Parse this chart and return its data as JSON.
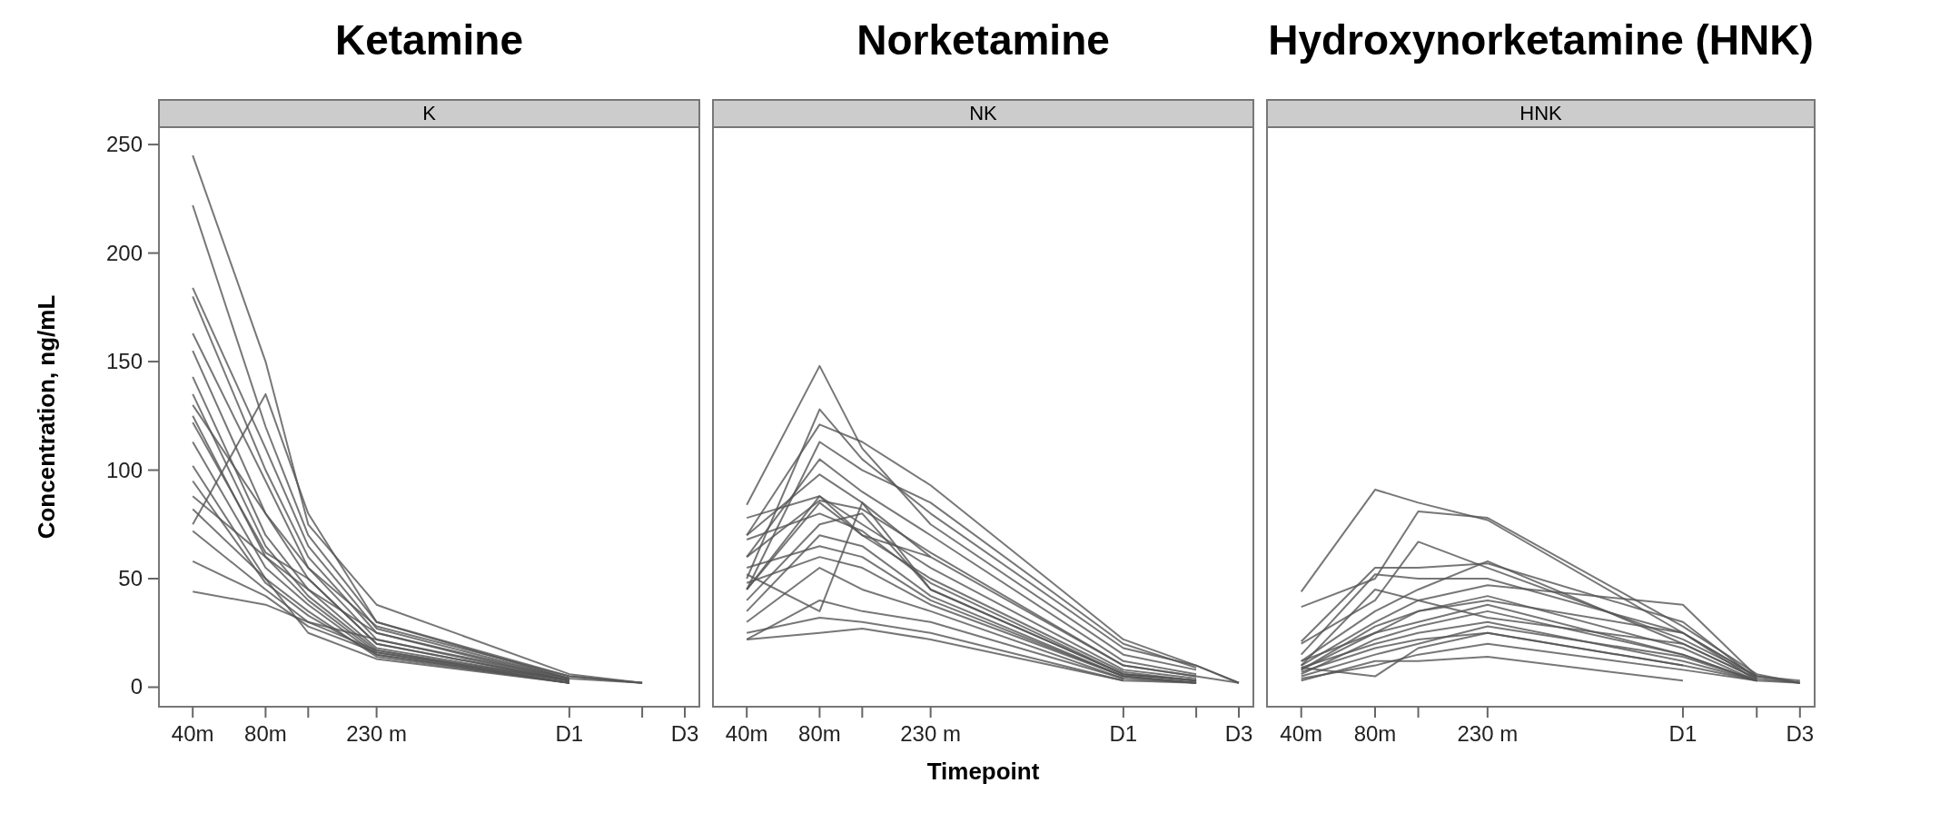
{
  "chart_data": [
    {
      "type": "line",
      "title": "Ketamine",
      "subtitle": "K",
      "ylabel": "Concentration, ng/mL",
      "log": "x",
      "x": [
        40,
        80,
        120,
        230,
        1440,
        2880
      ],
      "xlim": [
        29,
        4960
      ],
      "xticks": [
        {
          "value": 40,
          "label": "40m"
        },
        {
          "value": 80,
          "label": "80m"
        },
        {
          "value": 120,
          "label": null
        },
        {
          "value": 230,
          "label": "230 m"
        },
        {
          "value": 1440,
          "label": "D1"
        },
        {
          "value": 2880,
          "label": null
        },
        {
          "value": 4320,
          "label": "D3"
        }
      ],
      "ylim": [
        -9,
        258
      ],
      "yticks": [
        0,
        50,
        100,
        150,
        200,
        250
      ],
      "series": [
        {
          "color": "#555555",
          "values": [
            245,
            150,
            75,
            38,
            6,
            2
          ]
        },
        {
          "color": "#555555",
          "values": [
            222,
            120,
            70,
            30,
            4,
            null
          ]
        },
        {
          "color": "#555555",
          "values": [
            184,
            110,
            65,
            27,
            4,
            null
          ]
        },
        {
          "color": "#555555",
          "values": [
            180,
            100,
            60,
            25,
            3,
            null
          ]
        },
        {
          "color": "#555555",
          "values": [
            163,
            95,
            55,
            22,
            3,
            null
          ]
        },
        {
          "color": "#555555",
          "values": [
            155,
            80,
            50,
            20,
            3,
            null
          ]
        },
        {
          "color": "#555555",
          "values": [
            143,
            70,
            45,
            18,
            3,
            null
          ]
        },
        {
          "color": "#555555",
          "values": [
            135,
            65,
            42,
            17,
            2,
            null
          ]
        },
        {
          "color": "#555555",
          "values": [
            125,
            60,
            40,
            16,
            2,
            null
          ]
        },
        {
          "color": "#555555",
          "values": [
            122,
            62,
            50,
            20,
            3,
            null
          ]
        },
        {
          "color": "#555555",
          "values": [
            113,
            55,
            38,
            15,
            2,
            null
          ]
        },
        {
          "color": "#555555",
          "values": [
            102,
            50,
            35,
            14,
            2,
            null
          ]
        },
        {
          "color": "#555555",
          "values": [
            95,
            48,
            33,
            15,
            2,
            null
          ]
        },
        {
          "color": "#555555",
          "values": [
            75,
            135,
            80,
            30,
            5,
            2
          ]
        },
        {
          "color": "#555555",
          "values": [
            88,
            60,
            45,
            25,
            4,
            null
          ]
        },
        {
          "color": "#555555",
          "values": [
            72,
            45,
            30,
            17,
            3,
            null
          ]
        },
        {
          "color": "#555555",
          "values": [
            58,
            42,
            28,
            16,
            3,
            null
          ]
        },
        {
          "color": "#555555",
          "values": [
            44,
            38,
            30,
            22,
            4,
            2
          ]
        },
        {
          "color": "#555555",
          "values": [
            82,
            50,
            25,
            13,
            2,
            null
          ]
        },
        {
          "color": "#555555",
          "values": [
            130,
            80,
            55,
            28,
            5,
            2
          ]
        }
      ]
    },
    {
      "type": "line",
      "title": "Norketamine",
      "subtitle": "NK",
      "xlabel": "Timepoint",
      "log": "x",
      "tick_labels": "x",
      "x": [
        40,
        80,
        120,
        230,
        1440,
        2880,
        4320
      ],
      "xlim": [
        29,
        4960
      ],
      "xticks": [
        {
          "value": 40,
          "label": "40m"
        },
        {
          "value": 80,
          "label": "80m"
        },
        {
          "value": 120,
          "label": null
        },
        {
          "value": 230,
          "label": "230 m"
        },
        {
          "value": 1440,
          "label": "D1"
        },
        {
          "value": 2880,
          "label": null
        },
        {
          "value": 4320,
          "label": "D3"
        }
      ],
      "ylim": [
        -9,
        258
      ],
      "yticks": [
        0,
        50,
        100,
        150,
        200,
        250
      ],
      "series": [
        {
          "color": "#555555",
          "values": [
            84,
            148,
            110,
            75,
            15,
            8,
            null
          ]
        },
        {
          "color": "#555555",
          "values": [
            50,
            128,
            105,
            80,
            18,
            10,
            2
          ]
        },
        {
          "color": "#555555",
          "values": [
            70,
            121,
            113,
            93,
            22,
            10,
            2
          ]
        },
        {
          "color": "#555555",
          "values": [
            45,
            113,
            100,
            85,
            20,
            9,
            null
          ]
        },
        {
          "color": "#555555",
          "values": [
            60,
            105,
            90,
            70,
            12,
            6,
            null
          ]
        },
        {
          "color": "#555555",
          "values": [
            70,
            98,
            85,
            60,
            10,
            5,
            null
          ]
        },
        {
          "color": "#555555",
          "values": [
            78,
            88,
            75,
            55,
            8,
            4,
            null
          ]
        },
        {
          "color": "#555555",
          "values": [
            60,
            86,
            82,
            62,
            10,
            5,
            2
          ]
        },
        {
          "color": "#555555",
          "values": [
            45,
            85,
            70,
            50,
            7,
            3,
            null
          ]
        },
        {
          "color": "#555555",
          "values": [
            68,
            80,
            72,
            48,
            6,
            3,
            null
          ]
        },
        {
          "color": "#555555",
          "values": [
            40,
            75,
            80,
            45,
            6,
            3,
            null
          ]
        },
        {
          "color": "#555555",
          "values": [
            35,
            70,
            65,
            42,
            5,
            2,
            null
          ]
        },
        {
          "color": "#555555",
          "values": [
            55,
            65,
            60,
            40,
            5,
            2,
            null
          ]
        },
        {
          "color": "#555555",
          "values": [
            48,
            60,
            55,
            38,
            5,
            2,
            null
          ]
        },
        {
          "color": "#555555",
          "values": [
            30,
            55,
            45,
            35,
            4,
            2,
            null
          ]
        },
        {
          "color": "#555555",
          "values": [
            52,
            35,
            85,
            45,
            6,
            3,
            null
          ]
        },
        {
          "color": "#555555",
          "values": [
            22,
            40,
            35,
            30,
            4,
            null,
            null
          ]
        },
        {
          "color": "#555555",
          "values": [
            25,
            32,
            30,
            25,
            3,
            null,
            null
          ]
        },
        {
          "color": "#555555",
          "values": [
            22,
            25,
            27,
            22,
            3,
            2,
            null
          ]
        },
        {
          "color": "#555555",
          "values": [
            45,
            88,
            70,
            60,
            null,
            null,
            null
          ]
        }
      ]
    },
    {
      "type": "line",
      "title": "Hydroxynorketamine (HNK)",
      "subtitle": "HNK",
      "log": "x",
      "tick_labels": "x",
      "x": [
        40,
        80,
        120,
        230,
        1440,
        2880,
        4320
      ],
      "xlim": [
        29,
        4960
      ],
      "xticks": [
        {
          "value": 40,
          "label": "40m"
        },
        {
          "value": 80,
          "label": "80m"
        },
        {
          "value": 120,
          "label": null
        },
        {
          "value": 230,
          "label": "230 m"
        },
        {
          "value": 1440,
          "label": "D1"
        },
        {
          "value": 2880,
          "label": null
        },
        {
          "value": 4320,
          "label": "D3"
        }
      ],
      "ylim": [
        -9,
        258
      ],
      "yticks": [
        0,
        50,
        100,
        150,
        200,
        250
      ],
      "series": [
        {
          "color": "#555555",
          "values": [
            44,
            91,
            85,
            77,
            25,
            5,
            2
          ]
        },
        {
          "color": "#555555",
          "values": [
            37,
            50,
            81,
            78,
            28,
            6,
            2
          ]
        },
        {
          "color": "#555555",
          "values": [
            20,
            40,
            67,
            55,
            22,
            5,
            3
          ]
        },
        {
          "color": "#555555",
          "values": [
            21,
            55,
            55,
            57,
            30,
            4,
            null
          ]
        },
        {
          "color": "#555555",
          "values": [
            15,
            52,
            50,
            50,
            25,
            5,
            null
          ]
        },
        {
          "color": "#555555",
          "values": [
            12,
            35,
            45,
            58,
            20,
            4,
            2
          ]
        },
        {
          "color": "#555555",
          "values": [
            10,
            30,
            40,
            47,
            38,
            5,
            null
          ]
        },
        {
          "color": "#555555",
          "values": [
            8,
            28,
            35,
            42,
            18,
            3,
            null
          ]
        },
        {
          "color": "#555555",
          "values": [
            12,
            25,
            30,
            38,
            15,
            3,
            2
          ]
        },
        {
          "color": "#555555",
          "values": [
            6,
            22,
            28,
            35,
            15,
            3,
            null
          ]
        },
        {
          "color": "#555555",
          "values": [
            9,
            20,
            25,
            30,
            12,
            3,
            null
          ]
        },
        {
          "color": "#555555",
          "values": [
            5,
            15,
            20,
            28,
            14,
            3,
            null
          ]
        },
        {
          "color": "#555555",
          "values": [
            7,
            18,
            22,
            25,
            10,
            3,
            null
          ]
        },
        {
          "color": "#555555",
          "values": [
            4,
            10,
            15,
            20,
            8,
            3,
            null
          ]
        },
        {
          "color": "#555555",
          "values": [
            9,
            5,
            18,
            25,
            10,
            null,
            null
          ]
        },
        {
          "color": "#555555",
          "values": [
            3,
            12,
            12,
            14,
            3,
            null,
            null
          ]
        },
        {
          "color": "#555555",
          "values": [
            8,
            25,
            35,
            40,
            25,
            3,
            null
          ]
        },
        {
          "color": "#555555",
          "values": [
            10,
            45,
            40,
            32,
            20,
            4,
            null
          ]
        }
      ]
    }
  ]
}
